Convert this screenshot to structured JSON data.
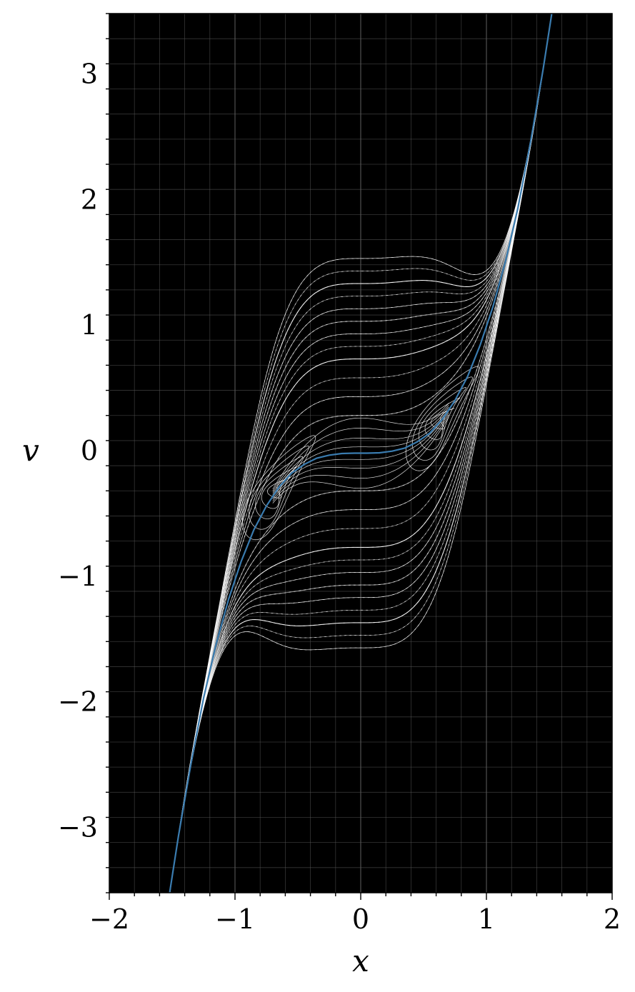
{
  "chart_data": {
    "type": "line",
    "title": "",
    "xlabel": "x",
    "ylabel": "v",
    "xlim": [
      -2,
      2
    ],
    "ylim": [
      -3.5,
      3.5
    ],
    "x_ticks": [
      -2,
      -1,
      0,
      1,
      2
    ],
    "x_tick_labels": [
      "−2",
      "−1",
      "0",
      "1",
      "2"
    ],
    "y_ticks": [
      -3,
      -2,
      -1,
      0,
      1,
      2,
      3
    ],
    "y_tick_labels": [
      "−3",
      "−2",
      "−1",
      "0",
      "1",
      "2",
      "3"
    ],
    "grid": true,
    "minor_grid": true,
    "background": "#000000",
    "grid_color": "#5a5a5a",
    "trajectory_color": "#ffffff",
    "curve_color": "#3a7cb0",
    "series": [
      {
        "style": "highlighted curve",
        "x": [
          -1.52,
          -1.45,
          -1.35,
          -1.25,
          -1.15,
          -1.05,
          -0.95,
          -0.85,
          -0.75,
          -0.65,
          -0.55,
          -0.45,
          -0.35,
          -0.25,
          -0.15,
          -0.05,
          0.05,
          0.15,
          0.25,
          0.35,
          0.45,
          0.55,
          0.65,
          0.75,
          0.85,
          0.95,
          1.05,
          1.15,
          1.25,
          1.35,
          1.45,
          1.52
        ],
        "y": [
          -3.5,
          -3.05,
          -2.47,
          -1.95,
          -1.52,
          -1.16,
          -0.86,
          -0.61,
          -0.42,
          -0.27,
          -0.16,
          -0.09,
          -0.04,
          -0.016,
          -0.003,
          0.0,
          0.0,
          0.003,
          0.016,
          0.04,
          0.09,
          0.16,
          0.27,
          0.42,
          0.61,
          0.86,
          1.16,
          1.52,
          1.95,
          2.47,
          3.05,
          3.5
        ]
      }
    ],
    "trajectories": {
      "description_free": true,
      "amplitudes": [
        0.3,
        0.45,
        0.6,
        0.75,
        0.85,
        0.95,
        1.05,
        1.15,
        1.25,
        1.35,
        1.45,
        1.55
      ],
      "inner_amplitudes": [
        0.1,
        0.2,
        0.3,
        0.4,
        0.5
      ]
    }
  }
}
